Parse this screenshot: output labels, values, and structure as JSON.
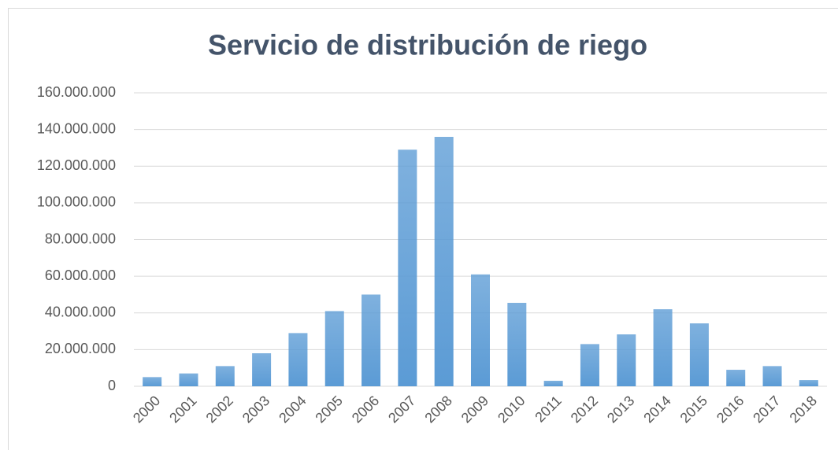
{
  "chart_data": {
    "type": "bar",
    "title": "Servicio de distribución de riego",
    "categories": [
      "2000",
      "2001",
      "2002",
      "2003",
      "2004",
      "2005",
      "2006",
      "2007",
      "2008",
      "2009",
      "2010",
      "2011",
      "2012",
      "2013",
      "2014",
      "2015",
      "2016",
      "2017",
      "2018"
    ],
    "values": [
      5000000,
      7000000,
      11000000,
      18000000,
      29000000,
      41000000,
      50000000,
      129000000,
      136000000,
      61000000,
      45500000,
      3000000,
      23000000,
      28300000,
      42000000,
      34300000,
      9000000,
      11000000,
      3400000
    ],
    "color": "#5b9bd5",
    "ylim": [
      0,
      160000000
    ],
    "yticks": [
      0,
      {
        "value": 20000000,
        "label": "20.000.000"
      },
      {
        "value": 40000000,
        "label": "40.000.000"
      },
      {
        "value": 60000000,
        "label": "60.000.000"
      },
      {
        "value": 80000000,
        "label": "80.000.000"
      },
      {
        "value": 100000000,
        "label": "100.000.000"
      },
      {
        "value": 120000000,
        "label": "120.000.000"
      },
      {
        "value": 140000000,
        "label": "140.000.000"
      },
      {
        "value": 160000000,
        "label": "160.000.000"
      }
    ],
    "grid": true
  }
}
